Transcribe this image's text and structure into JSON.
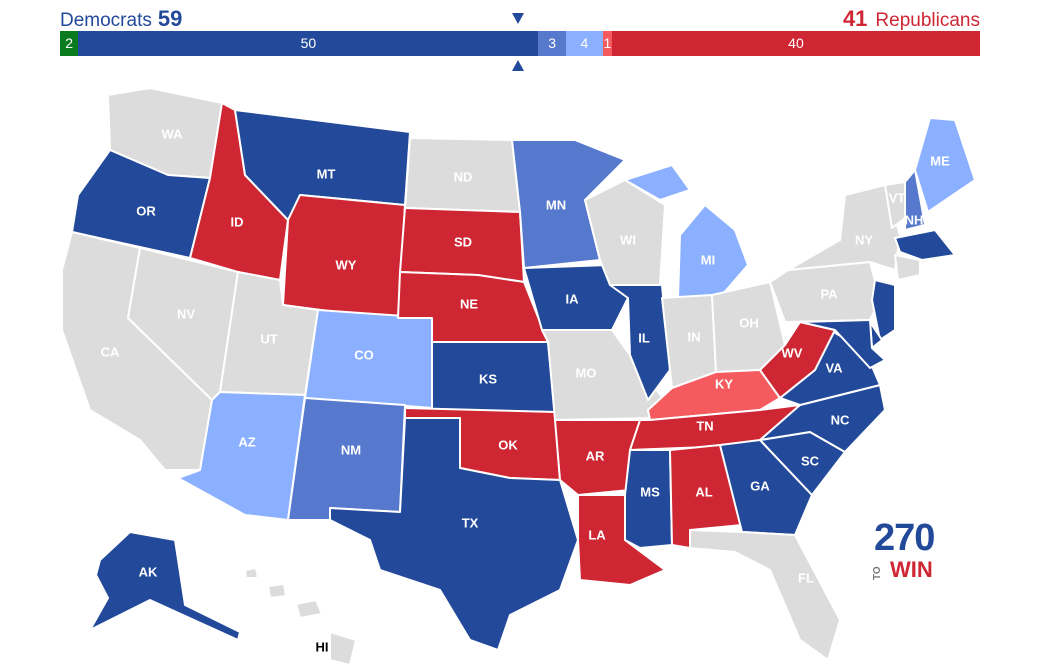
{
  "header": {
    "dem_label": "Democrats",
    "dem_total": "59",
    "rep_total": "41",
    "rep_label": "Republicans"
  },
  "bar": [
    {
      "key": "ind",
      "label": "2",
      "value": 2,
      "color": "#0a7a1f"
    },
    {
      "key": "safe_d",
      "label": "50",
      "value": 50,
      "color": "#23499a"
    },
    {
      "key": "likely_d",
      "label": "3",
      "value": 3,
      "color": "#5679cd"
    },
    {
      "key": "lean_d",
      "label": "4",
      "value": 4,
      "color": "#8bb0ff"
    },
    {
      "key": "lean_r",
      "label": "1",
      "value": 1,
      "color": "#f55a5e"
    },
    {
      "key": "safe_r",
      "label": "40",
      "value": 40,
      "color": "#cf2634"
    }
  ],
  "colors": {
    "safe_d": "#23499a",
    "likely_d": "#5679cd",
    "lean_d": "#8bb0ff",
    "lean_r": "#f55a5e",
    "safe_r": "#cf2634",
    "none": "#dcdcdc"
  },
  "states": [
    {
      "abbr": "WA",
      "rating": "none"
    },
    {
      "abbr": "OR",
      "rating": "safe_d"
    },
    {
      "abbr": "CA",
      "rating": "none"
    },
    {
      "abbr": "NV",
      "rating": "none"
    },
    {
      "abbr": "ID",
      "rating": "safe_r"
    },
    {
      "abbr": "MT",
      "rating": "safe_d"
    },
    {
      "abbr": "WY",
      "rating": "safe_r"
    },
    {
      "abbr": "UT",
      "rating": "none"
    },
    {
      "abbr": "AZ",
      "rating": "lean_d"
    },
    {
      "abbr": "CO",
      "rating": "lean_d"
    },
    {
      "abbr": "NM",
      "rating": "likely_d"
    },
    {
      "abbr": "ND",
      "rating": "none"
    },
    {
      "abbr": "SD",
      "rating": "safe_r"
    },
    {
      "abbr": "NE",
      "rating": "safe_r"
    },
    {
      "abbr": "KS",
      "rating": "safe_d"
    },
    {
      "abbr": "OK",
      "rating": "safe_r"
    },
    {
      "abbr": "TX",
      "rating": "safe_d"
    },
    {
      "abbr": "MN",
      "rating": "likely_d"
    },
    {
      "abbr": "IA",
      "rating": "safe_d"
    },
    {
      "abbr": "MO",
      "rating": "none"
    },
    {
      "abbr": "AR",
      "rating": "safe_r"
    },
    {
      "abbr": "LA",
      "rating": "safe_r"
    },
    {
      "abbr": "WI",
      "rating": "none"
    },
    {
      "abbr": "IL",
      "rating": "safe_d"
    },
    {
      "abbr": "MI",
      "rating": "lean_d"
    },
    {
      "abbr": "IN",
      "rating": "none"
    },
    {
      "abbr": "OH",
      "rating": "none"
    },
    {
      "abbr": "KY",
      "rating": "lean_r"
    },
    {
      "abbr": "TN",
      "rating": "safe_r"
    },
    {
      "abbr": "MS",
      "rating": "safe_d"
    },
    {
      "abbr": "AL",
      "rating": "safe_r"
    },
    {
      "abbr": "GA",
      "rating": "safe_d"
    },
    {
      "abbr": "FL",
      "rating": "none"
    },
    {
      "abbr": "SC",
      "rating": "safe_d"
    },
    {
      "abbr": "NC",
      "rating": "safe_d"
    },
    {
      "abbr": "VA",
      "rating": "safe_d"
    },
    {
      "abbr": "WV",
      "rating": "safe_r"
    },
    {
      "abbr": "PA",
      "rating": "none"
    },
    {
      "abbr": "NY",
      "rating": "none"
    },
    {
      "abbr": "VT",
      "rating": "none"
    },
    {
      "abbr": "NH",
      "rating": "likely_d"
    },
    {
      "abbr": "ME",
      "rating": "lean_d"
    },
    {
      "abbr": "MA",
      "rating": "safe_d"
    },
    {
      "abbr": "CT",
      "rating": "none"
    },
    {
      "abbr": "NJ",
      "rating": "safe_d"
    },
    {
      "abbr": "DE",
      "rating": "safe_d"
    },
    {
      "abbr": "MD",
      "rating": "safe_d"
    },
    {
      "abbr": "AK",
      "rating": "safe_d"
    },
    {
      "abbr": "HI",
      "rating": "none"
    }
  ],
  "logo": {
    "number": "270",
    "to": "TO",
    "win": "WIN"
  }
}
